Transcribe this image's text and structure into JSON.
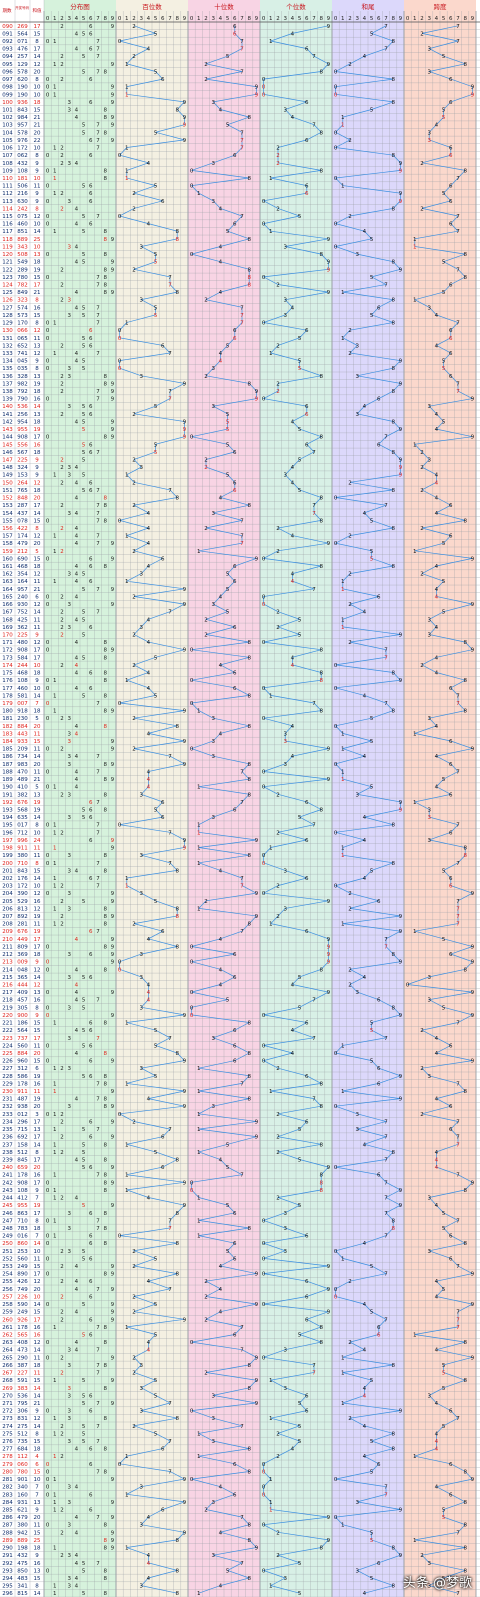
{
  "header": {
    "col_issue": "期数",
    "col_draw": "开奖号码",
    "col_sum": "和值",
    "sections": [
      {
        "title": "分布图",
        "color": "#d6f2dc"
      },
      {
        "title": "百位数",
        "color": "#f4f0e2"
      },
      {
        "title": "十位数",
        "color": "#f8d4e4"
      },
      {
        "title": "个位数",
        "color": "#d8f0e6"
      },
      {
        "title": "和尾",
        "color": "#dcd8fb"
      },
      {
        "title": "跨度",
        "color": "#fbd8cc"
      }
    ],
    "digits": [
      "0",
      "1",
      "2",
      "3",
      "4",
      "5",
      "6",
      "7",
      "8",
      "9"
    ]
  },
  "chart_data": {
    "type": "table",
    "colors": {
      "line": "#3b8fe0",
      "red_digit": "#e0201a",
      "header_red": "#c8161d",
      "grid": "#9aa0a6"
    },
    "first_issue": "090",
    "last_issue": "296",
    "rows": [
      {
        "issue": "090",
        "draw": "269",
        "sum": "17",
        "red": true
      },
      {
        "issue": "091",
        "draw": "564",
        "sum": "15"
      },
      {
        "issue": "092",
        "draw": "071",
        "sum": "8"
      },
      {
        "issue": "093",
        "draw": "476",
        "sum": "17"
      },
      {
        "issue": "094",
        "draw": "257",
        "sum": "14"
      },
      {
        "issue": "095",
        "draw": "129",
        "sum": "12"
      },
      {
        "issue": "096",
        "draw": "578",
        "sum": "20"
      },
      {
        "issue": "097",
        "draw": "620",
        "sum": "8"
      },
      {
        "issue": "098",
        "draw": "190",
        "sum": "10"
      },
      {
        "issue": "099",
        "draw": "190",
        "sum": "10"
      },
      {
        "issue": "100",
        "draw": "936",
        "sum": "18",
        "red": true
      },
      {
        "issue": "101",
        "draw": "843",
        "sum": "15"
      },
      {
        "issue": "102",
        "draw": "984",
        "sum": "21"
      },
      {
        "issue": "103",
        "draw": "957",
        "sum": "21"
      },
      {
        "issue": "104",
        "draw": "578",
        "sum": "20"
      },
      {
        "issue": "105",
        "draw": "976",
        "sum": "22"
      },
      {
        "issue": "106",
        "draw": "172",
        "sum": "10"
      },
      {
        "issue": "107",
        "draw": "062",
        "sum": "8"
      },
      {
        "issue": "108",
        "draw": "432",
        "sum": "9"
      },
      {
        "issue": "109",
        "draw": "108",
        "sum": "9"
      },
      {
        "issue": "110",
        "draw": "181",
        "sum": "10",
        "red": true
      },
      {
        "issue": "111",
        "draw": "506",
        "sum": "11"
      },
      {
        "issue": "112",
        "draw": "216",
        "sum": "9"
      },
      {
        "issue": "113",
        "draw": "630",
        "sum": "9"
      },
      {
        "issue": "114",
        "draw": "242",
        "sum": "8",
        "red": true
      },
      {
        "issue": "115",
        "draw": "075",
        "sum": "12"
      },
      {
        "issue": "116",
        "draw": "460",
        "sum": "10"
      },
      {
        "issue": "117",
        "draw": "851",
        "sum": "14"
      },
      {
        "issue": "118",
        "draw": "889",
        "sum": "25",
        "red": true
      },
      {
        "issue": "119",
        "draw": "343",
        "sum": "10",
        "red": true
      },
      {
        "issue": "120",
        "draw": "508",
        "sum": "13",
        "red": true
      },
      {
        "issue": "121",
        "draw": "549",
        "sum": "18"
      },
      {
        "issue": "122",
        "draw": "289",
        "sum": "19"
      },
      {
        "issue": "123",
        "draw": "780",
        "sum": "15"
      },
      {
        "issue": "124",
        "draw": "782",
        "sum": "17",
        "red": true
      },
      {
        "issue": "125",
        "draw": "849",
        "sum": "21"
      },
      {
        "issue": "126",
        "draw": "323",
        "sum": "8",
        "red": true
      },
      {
        "issue": "127",
        "draw": "574",
        "sum": "16"
      },
      {
        "issue": "128",
        "draw": "573",
        "sum": "15"
      },
      {
        "issue": "129",
        "draw": "170",
        "sum": "8"
      },
      {
        "issue": "130",
        "draw": "066",
        "sum": "12",
        "red": true
      },
      {
        "issue": "131",
        "draw": "065",
        "sum": "11"
      },
      {
        "issue": "132",
        "draw": "652",
        "sum": "13"
      },
      {
        "issue": "133",
        "draw": "741",
        "sum": "12"
      },
      {
        "issue": "134",
        "draw": "045",
        "sum": "9"
      },
      {
        "issue": "135",
        "draw": "035",
        "sum": "8"
      },
      {
        "issue": "136",
        "draw": "328",
        "sum": "13"
      },
      {
        "issue": "137",
        "draw": "982",
        "sum": "19"
      },
      {
        "issue": "138",
        "draw": "792",
        "sum": "18"
      },
      {
        "issue": "139",
        "draw": "790",
        "sum": "16"
      },
      {
        "issue": "140",
        "draw": "536",
        "sum": "14",
        "red": true
      },
      {
        "issue": "141",
        "draw": "256",
        "sum": "13"
      },
      {
        "issue": "142",
        "draw": "954",
        "sum": "18"
      },
      {
        "issue": "143",
        "draw": "955",
        "sum": "19",
        "red": true
      },
      {
        "issue": "144",
        "draw": "908",
        "sum": "17"
      },
      {
        "issue": "145",
        "draw": "556",
        "sum": "16",
        "red": true
      },
      {
        "issue": "146",
        "draw": "567",
        "sum": "18"
      },
      {
        "issue": "147",
        "draw": "225",
        "sum": "9",
        "red": true
      },
      {
        "issue": "148",
        "draw": "324",
        "sum": "9"
      },
      {
        "issue": "149",
        "draw": "153",
        "sum": "9"
      },
      {
        "issue": "150",
        "draw": "264",
        "sum": "12",
        "red": true
      },
      {
        "issue": "151",
        "draw": "765",
        "sum": "18"
      },
      {
        "issue": "152",
        "draw": "848",
        "sum": "20",
        "red": true
      },
      {
        "issue": "153",
        "draw": "287",
        "sum": "17"
      },
      {
        "issue": "154",
        "draw": "437",
        "sum": "14"
      },
      {
        "issue": "155",
        "draw": "078",
        "sum": "15"
      },
      {
        "issue": "156",
        "draw": "422",
        "sum": "8",
        "red": true
      },
      {
        "issue": "157",
        "draw": "174",
        "sum": "12"
      },
      {
        "issue": "158",
        "draw": "479",
        "sum": "20"
      },
      {
        "issue": "159",
        "draw": "212",
        "sum": "5",
        "red": true
      },
      {
        "issue": "160",
        "draw": "690",
        "sum": "15"
      },
      {
        "issue": "161",
        "draw": "468",
        "sum": "18"
      },
      {
        "issue": "162",
        "draw": "354",
        "sum": "12"
      },
      {
        "issue": "163",
        "draw": "164",
        "sum": "11"
      },
      {
        "issue": "164",
        "draw": "957",
        "sum": "21"
      },
      {
        "issue": "165",
        "draw": "240",
        "sum": "6"
      },
      {
        "issue": "166",
        "draw": "930",
        "sum": "12"
      },
      {
        "issue": "167",
        "draw": "752",
        "sum": "14"
      },
      {
        "issue": "168",
        "draw": "425",
        "sum": "11"
      },
      {
        "issue": "169",
        "draw": "362",
        "sum": "11"
      },
      {
        "issue": "170",
        "draw": "225",
        "sum": "9",
        "red": true
      },
      {
        "issue": "171",
        "draw": "480",
        "sum": "12"
      },
      {
        "issue": "172",
        "draw": "908",
        "sum": "17"
      },
      {
        "issue": "173",
        "draw": "584",
        "sum": "17"
      },
      {
        "issue": "174",
        "draw": "244",
        "sum": "10",
        "red": true
      },
      {
        "issue": "175",
        "draw": "468",
        "sum": "18"
      },
      {
        "issue": "176",
        "draw": "108",
        "sum": "9"
      },
      {
        "issue": "177",
        "draw": "460",
        "sum": "10"
      },
      {
        "issue": "178",
        "draw": "581",
        "sum": "14"
      },
      {
        "issue": "179",
        "draw": "007",
        "sum": "7",
        "red": true
      },
      {
        "issue": "180",
        "draw": "918",
        "sum": "18"
      },
      {
        "issue": "181",
        "draw": "230",
        "sum": "5"
      },
      {
        "issue": "182",
        "draw": "884",
        "sum": "20",
        "red": true
      },
      {
        "issue": "183",
        "draw": "443",
        "sum": "11",
        "red": true
      },
      {
        "issue": "184",
        "draw": "933",
        "sum": "15",
        "red": true
      },
      {
        "issue": "185",
        "draw": "209",
        "sum": "11"
      },
      {
        "issue": "186",
        "draw": "734",
        "sum": "14"
      },
      {
        "issue": "187",
        "draw": "983",
        "sum": "20"
      },
      {
        "issue": "188",
        "draw": "470",
        "sum": "11"
      },
      {
        "issue": "189",
        "draw": "489",
        "sum": "21"
      },
      {
        "issue": "190",
        "draw": "410",
        "sum": "5"
      },
      {
        "issue": "191",
        "draw": "382",
        "sum": "13"
      },
      {
        "issue": "192",
        "draw": "676",
        "sum": "19",
        "red": true
      },
      {
        "issue": "193",
        "draw": "568",
        "sum": "19"
      },
      {
        "issue": "194",
        "draw": "635",
        "sum": "14"
      },
      {
        "issue": "195",
        "draw": "017",
        "sum": "8"
      },
      {
        "issue": "196",
        "draw": "712",
        "sum": "10"
      },
      {
        "issue": "197",
        "draw": "996",
        "sum": "24",
        "red": true
      },
      {
        "issue": "198",
        "draw": "911",
        "sum": "11",
        "red": true
      },
      {
        "issue": "199",
        "draw": "380",
        "sum": "11"
      },
      {
        "issue": "200",
        "draw": "710",
        "sum": "8",
        "red": true
      },
      {
        "issue": "201",
        "draw": "843",
        "sum": "15"
      },
      {
        "issue": "202",
        "draw": "176",
        "sum": "14"
      },
      {
        "issue": "203",
        "draw": "172",
        "sum": "10"
      },
      {
        "issue": "204",
        "draw": "390",
        "sum": "12"
      },
      {
        "issue": "205",
        "draw": "529",
        "sum": "16"
      },
      {
        "issue": "206",
        "draw": "813",
        "sum": "12"
      },
      {
        "issue": "207",
        "draw": "892",
        "sum": "19"
      },
      {
        "issue": "208",
        "draw": "281",
        "sum": "11"
      },
      {
        "issue": "209",
        "draw": "676",
        "sum": "19",
        "red": true
      },
      {
        "issue": "210",
        "draw": "449",
        "sum": "17",
        "red": true
      },
      {
        "issue": "211",
        "draw": "809",
        "sum": "17"
      },
      {
        "issue": "212",
        "draw": "369",
        "sum": "18"
      },
      {
        "issue": "213",
        "draw": "009",
        "sum": "9",
        "red": true
      },
      {
        "issue": "214",
        "draw": "048",
        "sum": "12"
      },
      {
        "issue": "215",
        "draw": "365",
        "sum": "14"
      },
      {
        "issue": "216",
        "draw": "444",
        "sum": "12",
        "red": true
      },
      {
        "issue": "217",
        "draw": "409",
        "sum": "13"
      },
      {
        "issue": "218",
        "draw": "457",
        "sum": "16"
      },
      {
        "issue": "219",
        "draw": "305",
        "sum": "8"
      },
      {
        "issue": "220",
        "draw": "900",
        "sum": "9",
        "red": true
      },
      {
        "issue": "221",
        "draw": "186",
        "sum": "15"
      },
      {
        "issue": "222",
        "draw": "564",
        "sum": "15"
      },
      {
        "issue": "223",
        "draw": "737",
        "sum": "17",
        "red": true
      },
      {
        "issue": "224",
        "draw": "560",
        "sum": "11"
      },
      {
        "issue": "225",
        "draw": "884",
        "sum": "20",
        "red": true
      },
      {
        "issue": "226",
        "draw": "960",
        "sum": "15"
      },
      {
        "issue": "227",
        "draw": "312",
        "sum": "6"
      },
      {
        "issue": "228",
        "draw": "586",
        "sum": "19"
      },
      {
        "issue": "229",
        "draw": "178",
        "sum": "16"
      },
      {
        "issue": "230",
        "draw": "911",
        "sum": "11",
        "red": true
      },
      {
        "issue": "231",
        "draw": "487",
        "sum": "19"
      },
      {
        "issue": "232",
        "draw": "938",
        "sum": "20"
      },
      {
        "issue": "233",
        "draw": "012",
        "sum": "3"
      },
      {
        "issue": "234",
        "draw": "296",
        "sum": "17"
      },
      {
        "issue": "235",
        "draw": "715",
        "sum": "13"
      },
      {
        "issue": "236",
        "draw": "692",
        "sum": "17"
      },
      {
        "issue": "237",
        "draw": "158",
        "sum": "14"
      },
      {
        "issue": "238",
        "draw": "512",
        "sum": "8"
      },
      {
        "issue": "239",
        "draw": "845",
        "sum": "17"
      },
      {
        "issue": "240",
        "draw": "659",
        "sum": "20",
        "red": true
      },
      {
        "issue": "241",
        "draw": "178",
        "sum": "16"
      },
      {
        "issue": "242",
        "draw": "908",
        "sum": "17"
      },
      {
        "issue": "243",
        "draw": "108",
        "sum": "9"
      },
      {
        "issue": "244",
        "draw": "412",
        "sum": "7"
      },
      {
        "issue": "245",
        "draw": "955",
        "sum": "19",
        "red": true
      },
      {
        "issue": "246",
        "draw": "863",
        "sum": "17"
      },
      {
        "issue": "247",
        "draw": "710",
        "sum": "8"
      },
      {
        "issue": "248",
        "draw": "783",
        "sum": "18"
      },
      {
        "issue": "249",
        "draw": "016",
        "sum": "7"
      },
      {
        "issue": "250",
        "draw": "860",
        "sum": "14",
        "red": true
      },
      {
        "issue": "251",
        "draw": "253",
        "sum": "10"
      },
      {
        "issue": "252",
        "draw": "560",
        "sum": "11"
      },
      {
        "issue": "253",
        "draw": "249",
        "sum": "15"
      },
      {
        "issue": "254",
        "draw": "890",
        "sum": "17"
      },
      {
        "issue": "255",
        "draw": "426",
        "sum": "12"
      },
      {
        "issue": "256",
        "draw": "749",
        "sum": "20"
      },
      {
        "issue": "257",
        "draw": "226",
        "sum": "10",
        "red": true
      },
      {
        "issue": "258",
        "draw": "590",
        "sum": "14"
      },
      {
        "issue": "259",
        "draw": "249",
        "sum": "15"
      },
      {
        "issue": "260",
        "draw": "926",
        "sum": "17",
        "red": true
      },
      {
        "issue": "261",
        "draw": "178",
        "sum": "16"
      },
      {
        "issue": "262",
        "draw": "565",
        "sum": "16",
        "red": true
      },
      {
        "issue": "263",
        "draw": "408",
        "sum": "12"
      },
      {
        "issue": "264",
        "draw": "473",
        "sum": "14"
      },
      {
        "issue": "265",
        "draw": "290",
        "sum": "11"
      },
      {
        "issue": "266",
        "draw": "387",
        "sum": "18"
      },
      {
        "issue": "267",
        "draw": "227",
        "sum": "11",
        "red": true
      },
      {
        "issue": "268",
        "draw": "591",
        "sum": "15"
      },
      {
        "issue": "269",
        "draw": "383",
        "sum": "14",
        "red": true
      },
      {
        "issue": "270",
        "draw": "536",
        "sum": "14"
      },
      {
        "issue": "271",
        "draw": "795",
        "sum": "21"
      },
      {
        "issue": "272",
        "draw": "306",
        "sum": "9"
      },
      {
        "issue": "273",
        "draw": "831",
        "sum": "12"
      },
      {
        "issue": "274",
        "draw": "275",
        "sum": "14"
      },
      {
        "issue": "275",
        "draw": "512",
        "sum": "8"
      },
      {
        "issue": "276",
        "draw": "735",
        "sum": "15"
      },
      {
        "issue": "277",
        "draw": "684",
        "sum": "18"
      },
      {
        "issue": "278",
        "draw": "112",
        "sum": "4",
        "red": true
      },
      {
        "issue": "279",
        "draw": "060",
        "sum": "6",
        "red": true
      },
      {
        "issue": "280",
        "draw": "780",
        "sum": "15",
        "red": true
      },
      {
        "issue": "281",
        "draw": "901",
        "sum": "10"
      },
      {
        "issue": "282",
        "draw": "340",
        "sum": "7"
      },
      {
        "issue": "283",
        "draw": "160",
        "sum": "7"
      },
      {
        "issue": "284",
        "draw": "931",
        "sum": "13"
      },
      {
        "issue": "285",
        "draw": "621",
        "sum": "9"
      },
      {
        "issue": "286",
        "draw": "479",
        "sum": "20"
      },
      {
        "issue": "287",
        "draw": "380",
        "sum": "11"
      },
      {
        "issue": "288",
        "draw": "942",
        "sum": "15"
      },
      {
        "issue": "289",
        "draw": "889",
        "sum": "25",
        "red": true
      },
      {
        "issue": "290",
        "draw": "198",
        "sum": "18"
      },
      {
        "issue": "291",
        "draw": "432",
        "sum": "9"
      },
      {
        "issue": "292",
        "draw": "475",
        "sum": "16"
      },
      {
        "issue": "293",
        "draw": "850",
        "sum": "13"
      },
      {
        "issue": "294",
        "draw": "483",
        "sum": "15"
      },
      {
        "issue": "295",
        "draw": "341",
        "sum": "8"
      },
      {
        "issue": "296",
        "draw": "815",
        "sum": "14"
      }
    ]
  },
  "watermark": "头条 @梦歌"
}
